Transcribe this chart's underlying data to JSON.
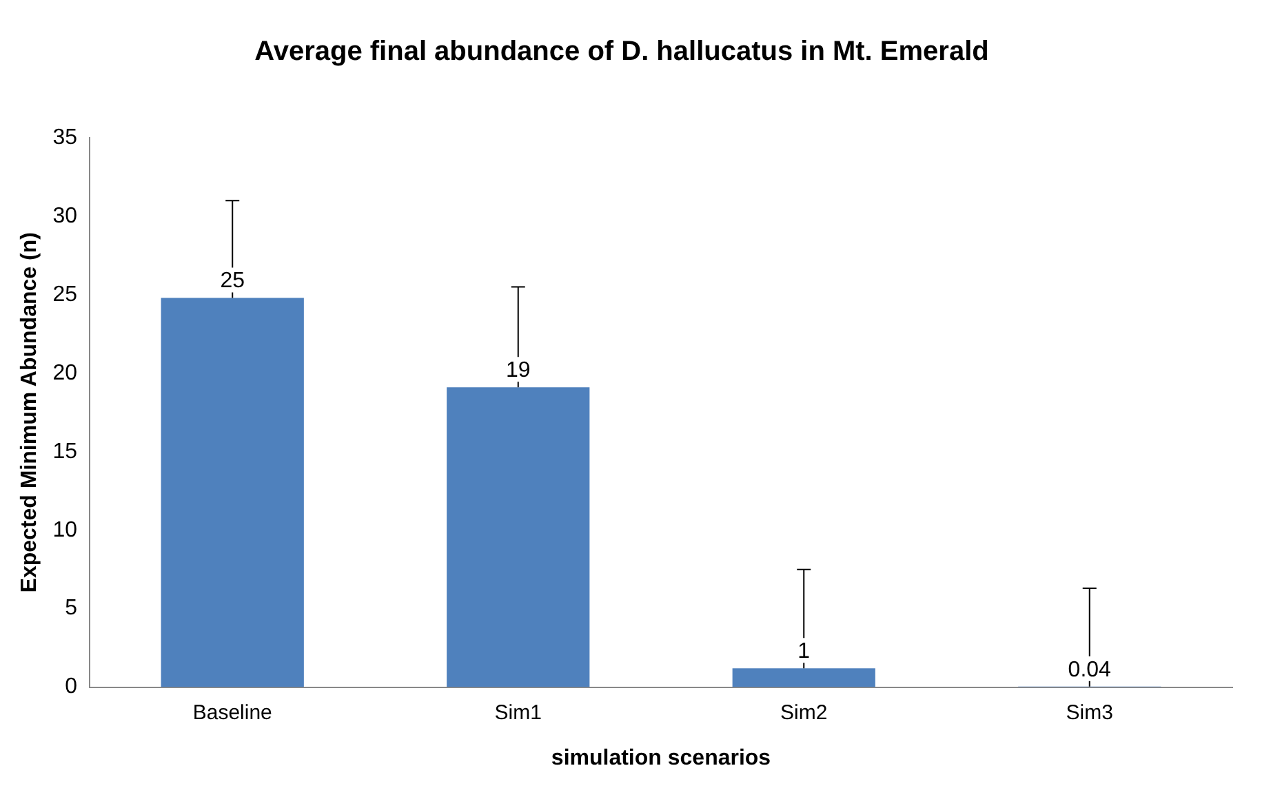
{
  "chart_data": {
    "type": "bar",
    "title": "Average final abundance of D. hallucatus in Mt. Emerald",
    "xlabel": "simulation scenarios",
    "ylabel": "Expected Minimum Abundance (n)",
    "categories": [
      "Baseline",
      "Sim1",
      "Sim2",
      "Sim3"
    ],
    "values": [
      24.8,
      19.1,
      1.2,
      0.04
    ],
    "color": "#4f81bd",
    "errors": [
      [
        24.8,
        31
      ],
      [
        19.1,
        25.5
      ],
      [
        1.2,
        7.5
      ],
      [
        0.04,
        6.3
      ]
    ],
    "value_labels": [
      "25",
      "19",
      "1",
      "0.04"
    ],
    "ylim": [
      0,
      35
    ],
    "yticks": [
      0,
      5,
      10,
      15,
      20,
      25,
      30,
      35
    ],
    "grid": false,
    "legend": false
  }
}
